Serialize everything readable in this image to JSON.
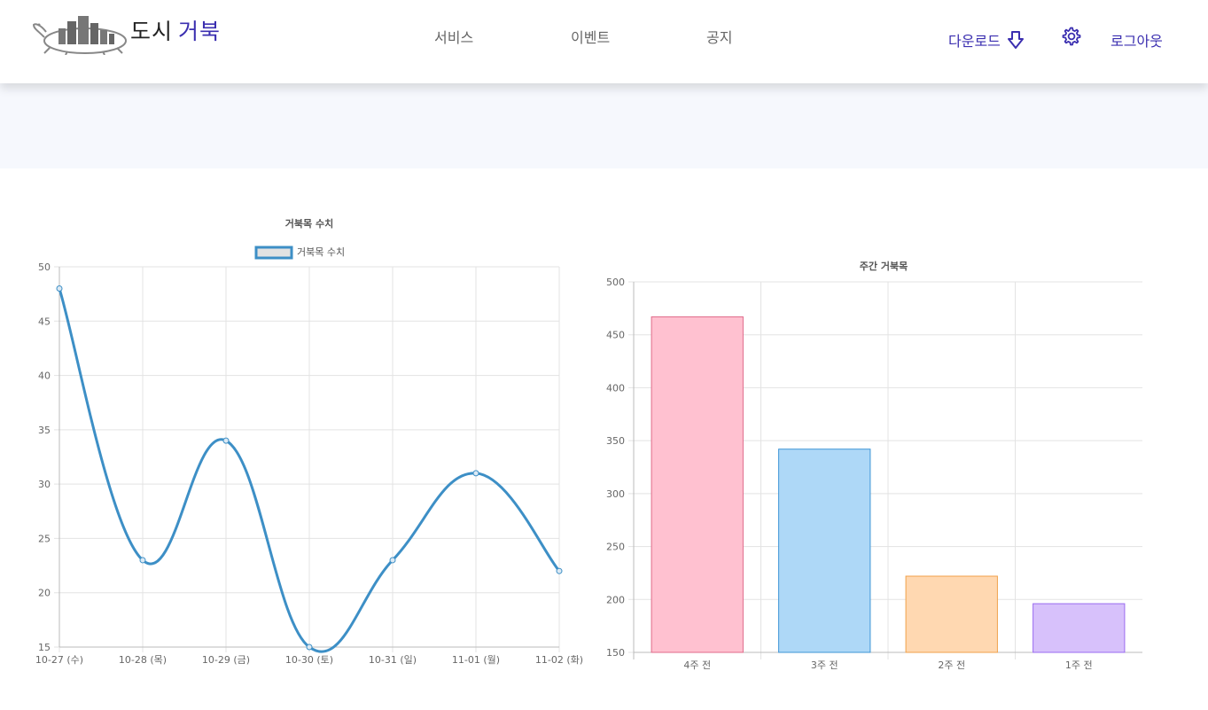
{
  "header": {
    "brand_part1": "도시",
    "brand_part2": "거북",
    "nav": [
      "서비스",
      "이벤트",
      "공지"
    ],
    "download_label": "다운로드",
    "logout_label": "로그아웃",
    "download_icon": "arrow-down-icon",
    "settings_icon": "gear-icon",
    "logo_icon": "turtle-city-logo"
  },
  "colors": {
    "brand_accent": "#3b2fb0",
    "line_series": "#3d8fc6",
    "band_bg": "#f6f8fd"
  },
  "chart_data": [
    {
      "type": "line",
      "title": "거북목 수치",
      "legend": "top",
      "categories": [
        "10-27 (수)",
        "10-28 (목)",
        "10-29 (금)",
        "10-30 (토)",
        "10-31 (일)",
        "11-01 (월)",
        "11-02 (화)"
      ],
      "series": [
        {
          "name": "거북목 수치",
          "values": [
            48,
            23,
            34,
            15,
            23,
            31,
            22
          ],
          "color": "#3d8fc6"
        }
      ],
      "yticks": [
        50,
        45,
        40,
        35,
        30,
        25,
        20,
        15
      ],
      "ylim": [
        15,
        50
      ],
      "grid": true
    },
    {
      "type": "bar",
      "title": "주간 거북목",
      "categories": [
        "4주 전",
        "3주 전",
        "2주 전",
        "1주 전"
      ],
      "values": [
        467,
        342,
        222,
        196
      ],
      "bar_colors": [
        {
          "fill": "#ffc1d0",
          "stroke": "#e06a8a"
        },
        {
          "fill": "#aed8f7",
          "stroke": "#3e95d6"
        },
        {
          "fill": "#ffd8b1",
          "stroke": "#f0a14b"
        },
        {
          "fill": "#d7c1fb",
          "stroke": "#9a6bf0"
        }
      ],
      "yticks": [
        500,
        450,
        400,
        350,
        300,
        250,
        200,
        150
      ],
      "ylim": [
        150,
        500
      ],
      "grid": true
    }
  ]
}
